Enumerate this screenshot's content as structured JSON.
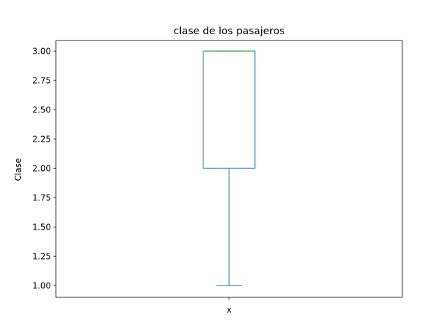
{
  "chart_data": {
    "type": "box",
    "title": "clase de los pasajeros",
    "xlabel": "",
    "ylabel": "Clase",
    "categories": [
      "x"
    ],
    "boxes": [
      {
        "category": "x",
        "whisker_low": 1.0,
        "q1": 2.0,
        "median": 3.0,
        "q3": 3.0,
        "whisker_high": 3.0
      }
    ],
    "ylim": [
      0.9,
      3.09
    ],
    "yticks": [
      1.0,
      1.25,
      1.5,
      1.75,
      2.0,
      2.25,
      2.5,
      2.75,
      3.0
    ],
    "ytick_labels": [
      "1.00",
      "1.25",
      "1.50",
      "1.75",
      "2.00",
      "2.25",
      "2.50",
      "2.75",
      "3.00"
    ],
    "grid": false,
    "colors": {
      "box": "#1f77b4",
      "median": "#2ca02c"
    }
  }
}
